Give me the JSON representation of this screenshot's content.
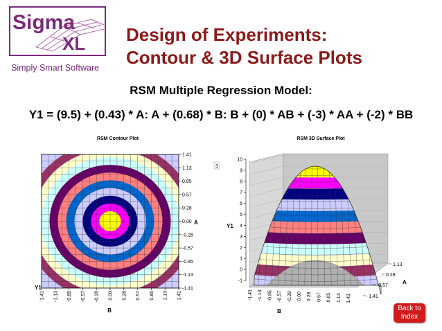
{
  "logo": {
    "word1": "Sigma",
    "word2": "XL",
    "tagline": "Simply Smart Software"
  },
  "title": {
    "line1": "Design of Experiments:",
    "line2": "Contour & 3D Surface Plots"
  },
  "subtitle": "RSM Multiple Regression Model:",
  "equation": "Y1 = (9.5) + (0.43) * A: A + (0.68) * B: B + (0) * AB + (-3) * AA + (-2) * BB",
  "back_button": {
    "line1": "Back to",
    "line2": "Index"
  },
  "colors": {
    "title": "#8b1a1a",
    "button": "#d01c1c",
    "bands": [
      "#ccccff",
      "#993366",
      "#ffffcc",
      "#ccffff",
      "#660066",
      "#ff8080",
      "#0066cc",
      "#ccccff",
      "#000080",
      "#ff00ff",
      "#ffff00"
    ]
  },
  "chart_data": [
    {
      "type": "contour",
      "title": "RSM Contour Plot",
      "xlabel": "B",
      "ylabel": "A",
      "zlabel": "Y1",
      "x_ticks": [
        "-1.41",
        "-1.13",
        "-0.85",
        "-0.57",
        "-0.28",
        "0.00",
        "0.28",
        "0.57",
        "0.85",
        "1.13",
        "1.41"
      ],
      "y_ticks": [
        "1.41",
        "1.13",
        "0.85",
        "0.57",
        "0.28",
        "0.00",
        "-0.28",
        "-0.57",
        "-0.85",
        "-1.13",
        "-1.41"
      ],
      "xlim": [
        -1.41,
        1.41
      ],
      "ylim": [
        -1.41,
        1.41
      ]
    },
    {
      "type": "surface",
      "title": "RSM 3D Surface Plot",
      "xlabel": "B",
      "ylabel": "A",
      "zlabel": "Y1",
      "x_ticks": [
        "-1.41",
        "-1.13",
        "-0.85",
        "-0.57",
        "-0.28",
        "0.00",
        "0.28",
        "0.57",
        "0.85",
        "1.13",
        "1.41"
      ],
      "y_ticks": [
        "1.13",
        "0.28",
        "-0.57",
        "-1.41"
      ],
      "z_ticks": [
        "10",
        "9",
        "8",
        "7",
        "6",
        "5",
        "4",
        "3",
        "2",
        "1",
        "0",
        "-1"
      ],
      "zlim": [
        -1,
        10
      ],
      "legend_fragment": "3"
    }
  ]
}
